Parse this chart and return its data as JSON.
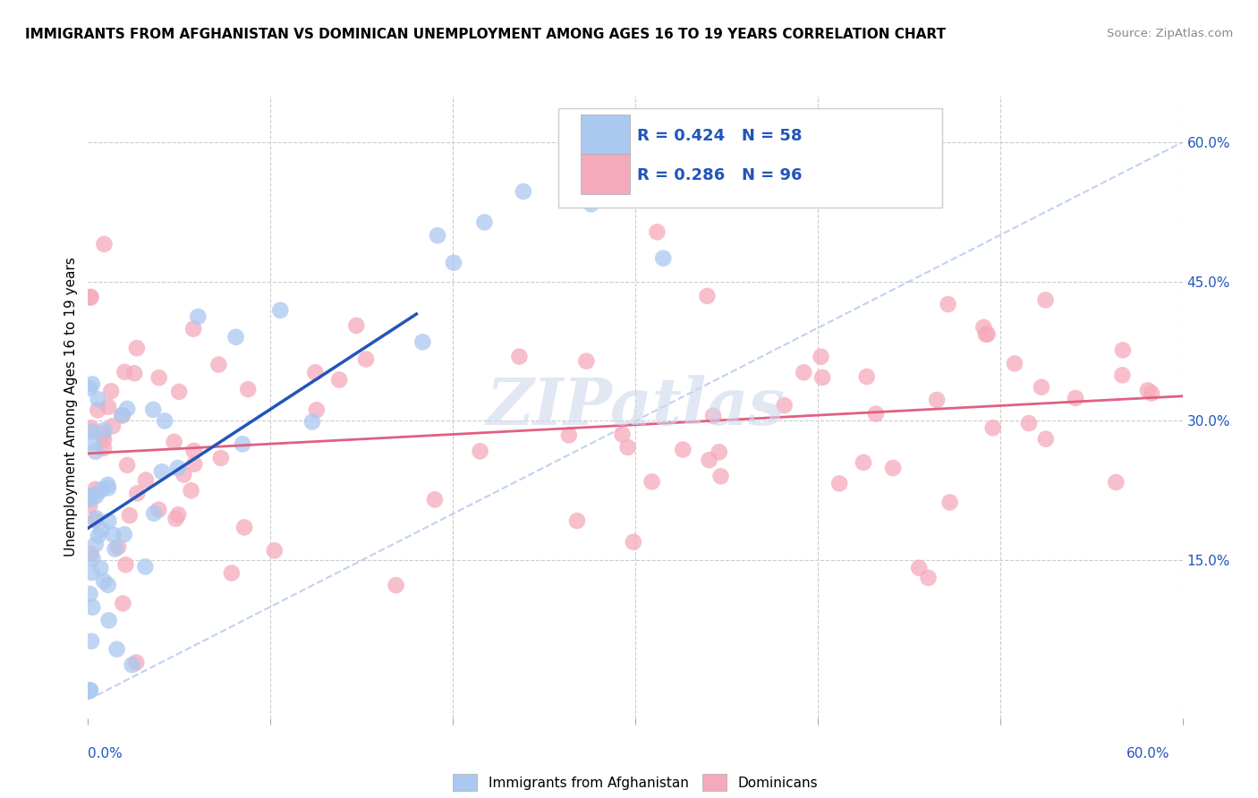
{
  "title": "IMMIGRANTS FROM AFGHANISTAN VS DOMINICAN UNEMPLOYMENT AMONG AGES 16 TO 19 YEARS CORRELATION CHART",
  "source": "Source: ZipAtlas.com",
  "ylabel": "Unemployment Among Ages 16 to 19 years",
  "xlim": [
    0.0,
    0.6
  ],
  "ylim": [
    -0.02,
    0.65
  ],
  "yticks_right": [
    0.15,
    0.3,
    0.45,
    0.6
  ],
  "yticklabels_right": [
    "15.0%",
    "30.0%",
    "45.0%",
    "60.0%"
  ],
  "grid_color": "#cccccc",
  "background_color": "#ffffff",
  "watermark": "ZIPatlas",
  "legend_R1": "R = 0.424",
  "legend_N1": "N = 58",
  "legend_R2": "R = 0.286",
  "legend_N2": "N = 96",
  "series1_color": "#aac8f0",
  "series2_color": "#f5aabb",
  "trend1_color": "#2255bb",
  "trend2_color": "#e06080",
  "ref_line_color": "#bbccee",
  "series1_name": "Immigrants from Afghanistan",
  "series2_name": "Dominicans"
}
